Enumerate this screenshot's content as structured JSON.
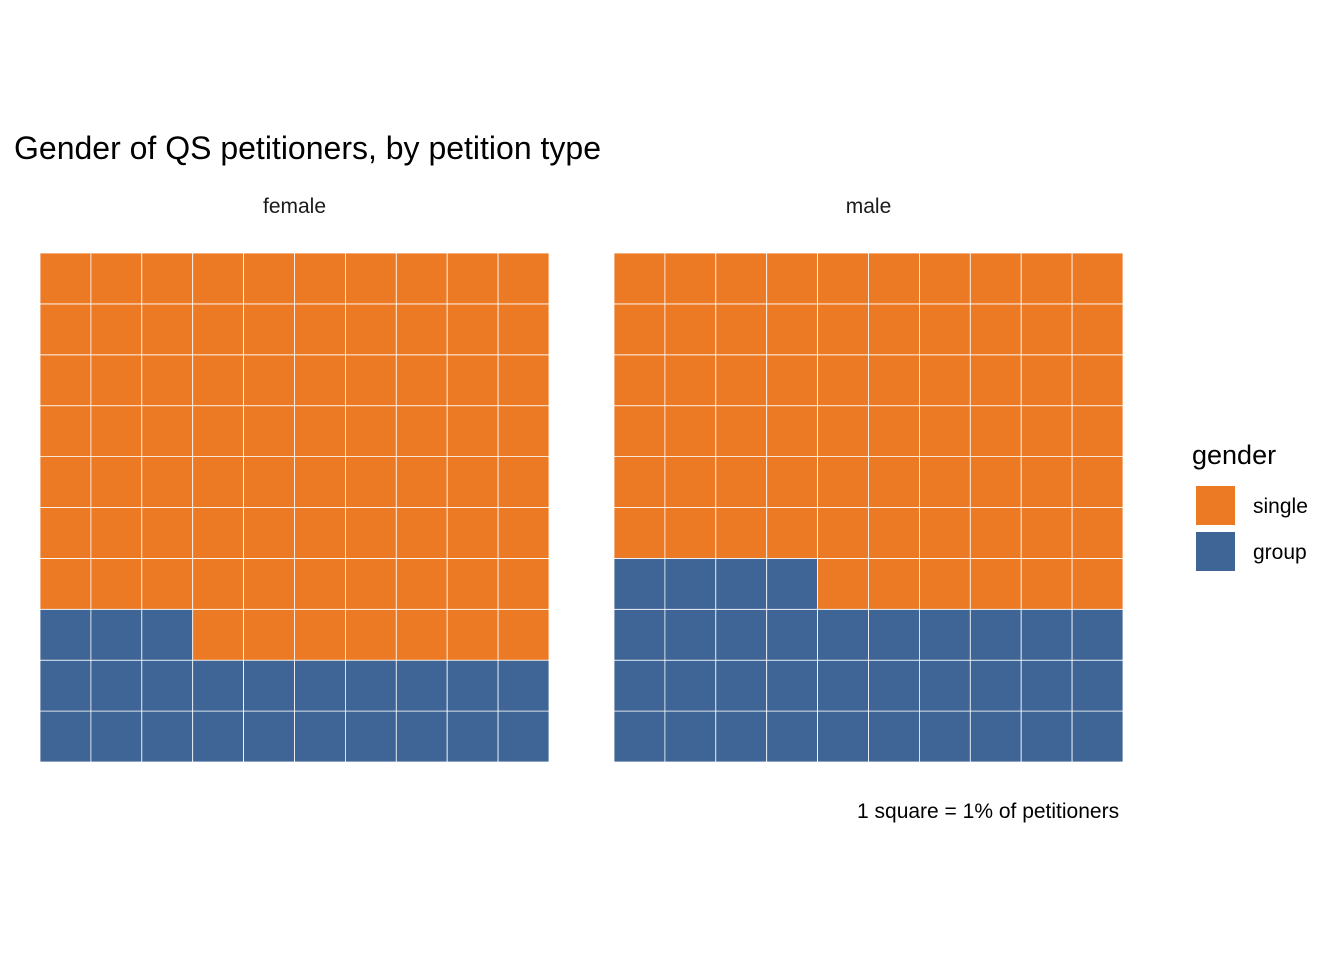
{
  "chart_data": {
    "type": "waffle",
    "title": "Gender of QS petitioners, by petition type",
    "grid": [
      10,
      10
    ],
    "panels": [
      {
        "name": "female",
        "values": {
          "single": 77,
          "group": 23
        }
      },
      {
        "name": "male",
        "values": {
          "single": 66,
          "group": 34
        }
      }
    ],
    "legend": {
      "title": "gender",
      "position": "right",
      "entries": [
        {
          "label": "single",
          "color": "#EC7A24"
        },
        {
          "label": "group",
          "color": "#3E6595"
        }
      ]
    },
    "caption": "1 square = 1% of petitioners"
  }
}
